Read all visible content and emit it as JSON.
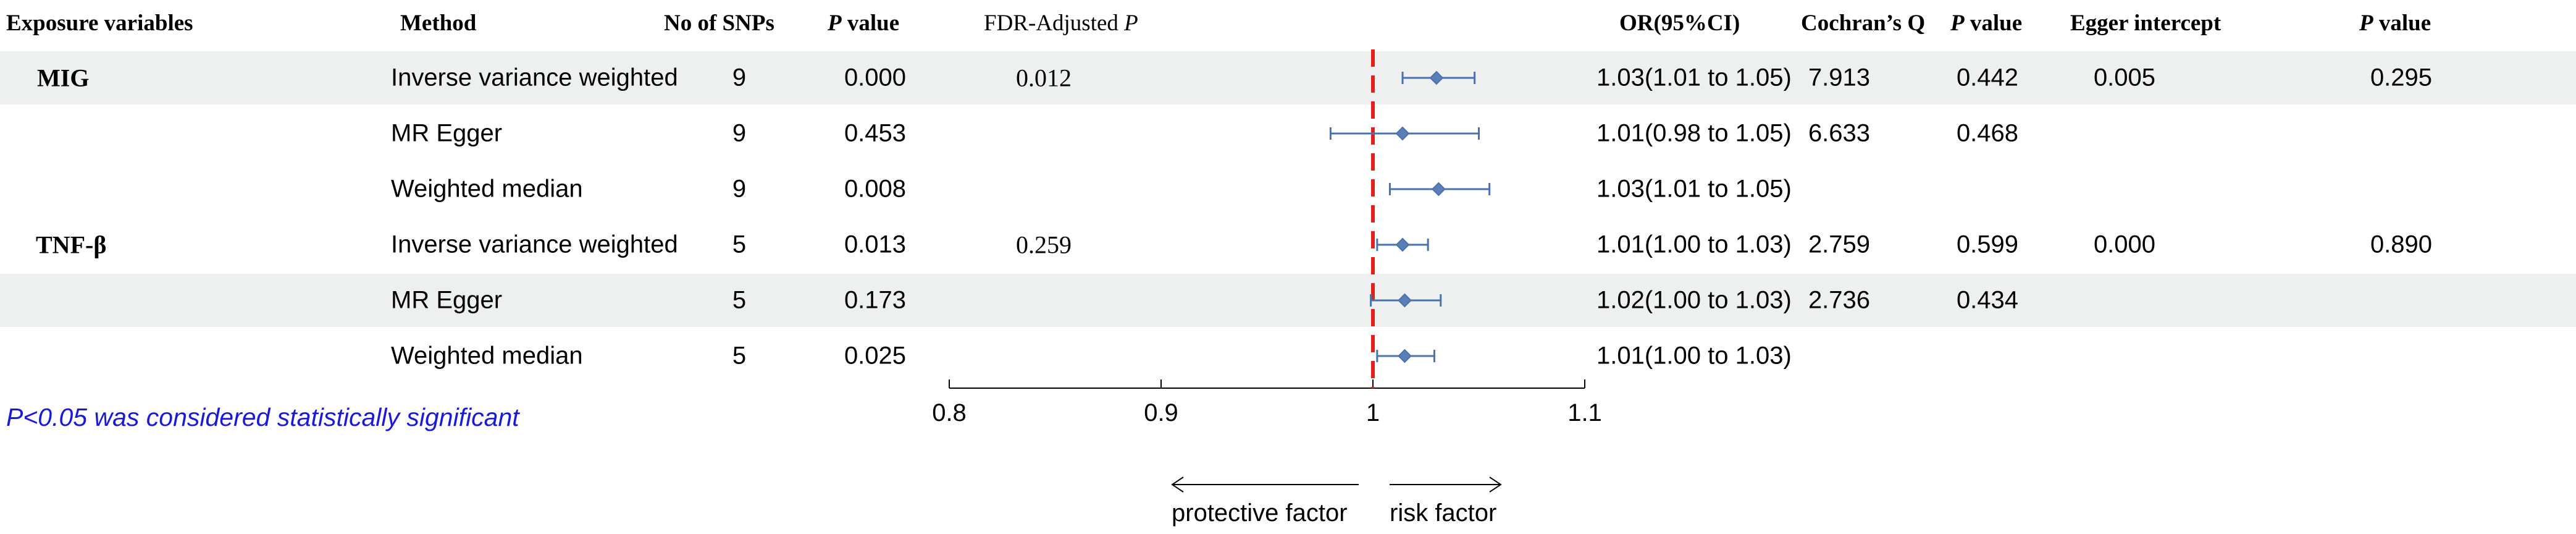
{
  "headers": {
    "exposure": "Exposure variables",
    "method": "Method",
    "snps": "No of SNPs",
    "p_italic": "P",
    "p_rest": " value",
    "fdr_prefix": "FDR-Adjusted ",
    "fdr_italic": "P",
    "or": "OR(95%CI)",
    "cochran": "Cochran’s Q",
    "p2_italic": "P",
    "p2_rest": " value",
    "egger": "Egger intercept",
    "p3_italic": "P",
    "p3_rest": " value"
  },
  "rows": [
    {
      "exposure": "MIG",
      "method": "Inverse variance weighted",
      "snps": "9",
      "p": "0.000",
      "fdr": "0.012",
      "or": "1.03(1.01 to 1.05)",
      "q": "7.913",
      "qp": "0.442",
      "egger": "0.005",
      "eggerp": "0.295"
    },
    {
      "exposure": "",
      "method": "MR Egger",
      "snps": "9",
      "p": "0.453",
      "fdr": "",
      "or": "1.01(0.98 to 1.05)",
      "q": "6.633",
      "qp": "0.468",
      "egger": "",
      "eggerp": ""
    },
    {
      "exposure": "",
      "method": "Weighted median",
      "snps": "9",
      "p": "0.008",
      "fdr": "",
      "or": "1.03(1.01 to 1.05)",
      "q": "",
      "qp": "",
      "egger": "",
      "eggerp": ""
    },
    {
      "exposure": "TNF-β",
      "method": "Inverse variance weighted",
      "snps": "5",
      "p": "0.013",
      "fdr": "0.259",
      "or": "1.01(1.00 to 1.03)",
      "q": "2.759",
      "qp": "0.599",
      "egger": "0.000",
      "eggerp": "0.890"
    },
    {
      "exposure": "",
      "method": "MR Egger",
      "snps": "5",
      "p": "0.173",
      "fdr": "",
      "or": "1.02(1.00 to 1.03)",
      "q": "2.736",
      "qp": "0.434",
      "egger": "",
      "eggerp": ""
    },
    {
      "exposure": "",
      "method": "Weighted median",
      "snps": "5",
      "p": "0.025",
      "fdr": "",
      "or": "1.01(1.00 to 1.03)",
      "q": "",
      "qp": "",
      "egger": "",
      "eggerp": ""
    }
  ],
  "note": "P<0.05 was considered statistically significant",
  "colors": {
    "point": "#5b7fb5",
    "ci_line": "#4a72ad",
    "ref_line": "#e0211d",
    "band": "#eef0f0",
    "note": "#1a1ad6"
  },
  "chart_data": {
    "type": "forest",
    "xlim": [
      0.8,
      1.1
    ],
    "ticks": [
      0.8,
      0.9,
      1.0,
      1.1
    ],
    "tick_labels": [
      "0.8",
      "0.9",
      "1",
      "1.1"
    ],
    "reference": 1.0,
    "left_label": "protective factor",
    "right_label": "risk factor",
    "series": [
      {
        "name": "MIG Inverse variance weighted",
        "or": 1.03,
        "lower": 1.014,
        "upper": 1.048
      },
      {
        "name": "MIG MR Egger",
        "or": 1.014,
        "lower": 0.98,
        "upper": 1.05
      },
      {
        "name": "MIG Weighted median",
        "or": 1.031,
        "lower": 1.008,
        "upper": 1.055
      },
      {
        "name": "TNF-β Inverse variance weighted",
        "or": 1.014,
        "lower": 1.002,
        "upper": 1.026
      },
      {
        "name": "TNF-β MR Egger",
        "or": 1.015,
        "lower": 0.999,
        "upper": 1.032
      },
      {
        "name": "TNF-β Weighted median",
        "or": 1.015,
        "lower": 1.002,
        "upper": 1.029
      }
    ]
  }
}
